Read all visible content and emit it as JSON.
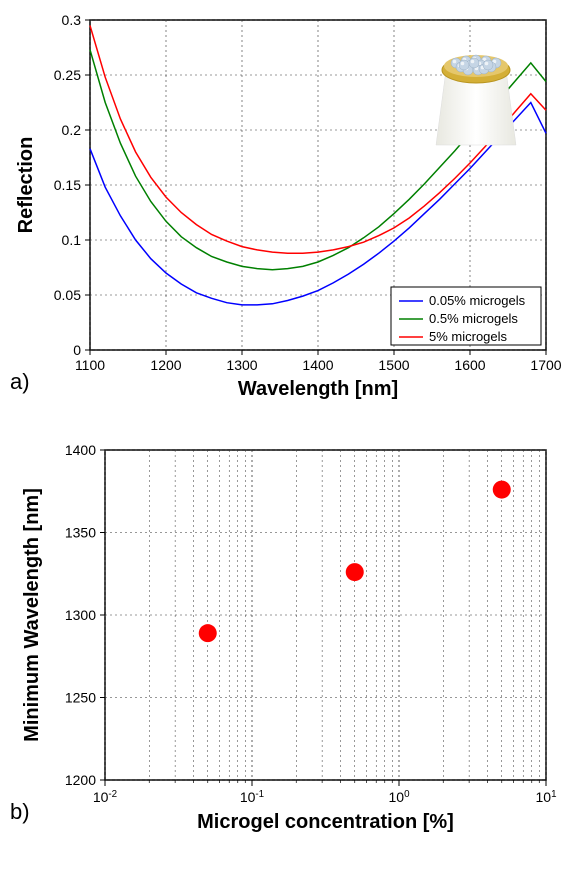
{
  "chart_a": {
    "type": "line",
    "xlabel": "Wavelength [nm]",
    "ylabel": "Reflection",
    "label_fontsize": 20,
    "tick_fontsize": 14,
    "xlim": [
      1100,
      1700
    ],
    "ylim": [
      0,
      0.3
    ],
    "xtick_step": 100,
    "ytick_step": 0.05,
    "xticks": [
      1100,
      1200,
      1300,
      1400,
      1500,
      1600,
      1700
    ],
    "yticks": [
      0,
      0.05,
      0.1,
      0.15,
      0.2,
      0.25,
      0.3
    ],
    "grid_color": "#333333",
    "grid_dash": "2,3",
    "background_color": "#ffffff",
    "line_width": 1.5,
    "series": [
      {
        "label": "0.05% microgels",
        "color": "#0000ff",
        "x": [
          1100,
          1120,
          1140,
          1160,
          1180,
          1200,
          1220,
          1240,
          1260,
          1280,
          1300,
          1320,
          1340,
          1360,
          1380,
          1400,
          1420,
          1440,
          1460,
          1480,
          1500,
          1520,
          1540,
          1560,
          1580,
          1600,
          1620,
          1640,
          1660,
          1680,
          1700
        ],
        "y": [
          0.183,
          0.148,
          0.122,
          0.1,
          0.083,
          0.07,
          0.06,
          0.052,
          0.047,
          0.043,
          0.041,
          0.041,
          0.042,
          0.045,
          0.049,
          0.054,
          0.061,
          0.069,
          0.078,
          0.088,
          0.099,
          0.111,
          0.124,
          0.137,
          0.151,
          0.165,
          0.18,
          0.195,
          0.21,
          0.225,
          0.197
        ]
      },
      {
        "label": "0.5% microgels",
        "color": "#008000",
        "x": [
          1100,
          1120,
          1140,
          1160,
          1180,
          1200,
          1220,
          1240,
          1260,
          1280,
          1300,
          1320,
          1340,
          1360,
          1380,
          1400,
          1420,
          1440,
          1460,
          1480,
          1500,
          1520,
          1540,
          1560,
          1580,
          1600,
          1620,
          1640,
          1660,
          1680,
          1700
        ],
        "y": [
          0.273,
          0.225,
          0.188,
          0.158,
          0.135,
          0.117,
          0.103,
          0.093,
          0.085,
          0.08,
          0.076,
          0.074,
          0.073,
          0.074,
          0.076,
          0.08,
          0.086,
          0.093,
          0.102,
          0.112,
          0.124,
          0.137,
          0.151,
          0.166,
          0.181,
          0.197,
          0.213,
          0.229,
          0.245,
          0.261,
          0.244
        ]
      },
      {
        "label": "5% microgels",
        "color": "#ff0000",
        "x": [
          1100,
          1120,
          1140,
          1160,
          1180,
          1200,
          1220,
          1240,
          1260,
          1280,
          1300,
          1320,
          1340,
          1360,
          1380,
          1400,
          1420,
          1440,
          1460,
          1480,
          1500,
          1520,
          1540,
          1560,
          1580,
          1600,
          1620,
          1640,
          1660,
          1680,
          1700
        ],
        "y": [
          0.295,
          0.248,
          0.21,
          0.18,
          0.157,
          0.139,
          0.125,
          0.114,
          0.105,
          0.099,
          0.094,
          0.091,
          0.089,
          0.088,
          0.088,
          0.089,
          0.091,
          0.094,
          0.098,
          0.104,
          0.111,
          0.12,
          0.131,
          0.143,
          0.156,
          0.17,
          0.185,
          0.201,
          0.217,
          0.233,
          0.218
        ]
      }
    ],
    "subplot_label": "a)",
    "inset_colors": {
      "ring": "#d4af37",
      "spheres": "#c5d5e5",
      "fiber": "#f5f5f0"
    }
  },
  "chart_b": {
    "type": "scatter",
    "xlabel": "Microgel concentration [%]",
    "ylabel": "Minimum Wavelength [nm]",
    "label_fontsize": 20,
    "tick_fontsize": 14,
    "xlim": [
      0.01,
      10
    ],
    "ylim": [
      1200,
      1400
    ],
    "xscale": "log",
    "xticks": [
      0.01,
      0.1,
      1,
      10
    ],
    "xtick_labels": [
      "10⁻²",
      "10⁻¹",
      "10⁰",
      "10¹"
    ],
    "yticks": [
      1200,
      1250,
      1300,
      1350,
      1400
    ],
    "grid_color": "#333333",
    "grid_dash": "2,3",
    "background_color": "#ffffff",
    "marker_color": "#ff0000",
    "marker_size": 9,
    "points": [
      {
        "x": 0.05,
        "y": 1289
      },
      {
        "x": 0.5,
        "y": 1326
      },
      {
        "x": 5,
        "y": 1376
      }
    ],
    "subplot_label": "b)"
  }
}
